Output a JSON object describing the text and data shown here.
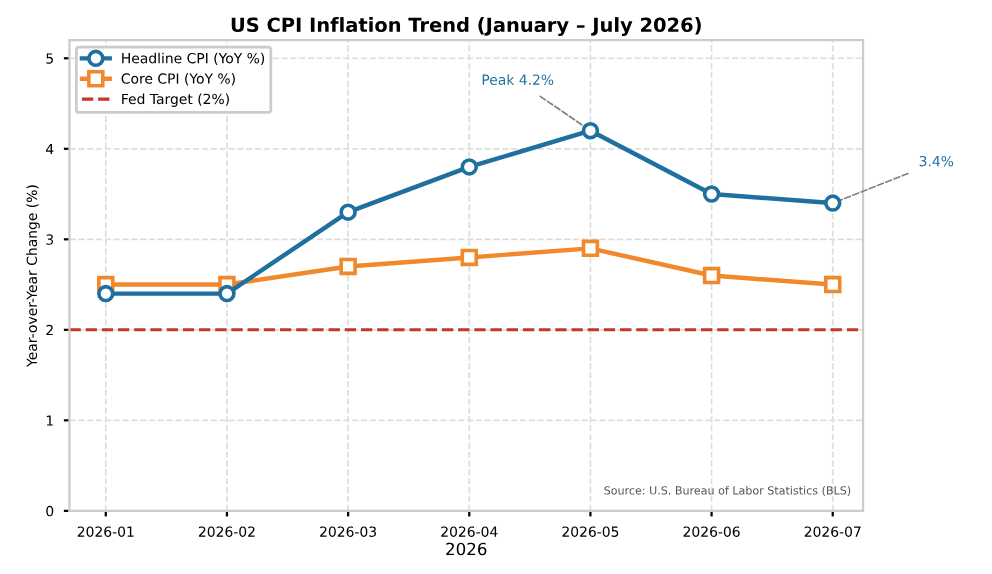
{
  "chart_data": {
    "type": "line",
    "title": "US CPI Inflation Trend (January – July 2026)",
    "xlabel": "2026",
    "ylabel": "Year-over-Year Change (%)",
    "categories": [
      "2026-01",
      "2026-02",
      "2026-03",
      "2026-04",
      "2026-05",
      "2026-06",
      "2026-07"
    ],
    "series": [
      {
        "name": "Headline CPI (YoY %)",
        "color": "#1f6f9f",
        "marker": "circle",
        "values": [
          2.4,
          2.4,
          3.3,
          3.8,
          4.2,
          3.5,
          3.4
        ]
      },
      {
        "name": "Core CPI (YoY %)",
        "color": "#f0892b",
        "marker": "square",
        "values": [
          2.5,
          2.5,
          2.7,
          2.8,
          2.9,
          2.6,
          2.5
        ]
      }
    ],
    "ref_lines": [
      {
        "axis": "y",
        "value": 2,
        "label": "Fed Target (2%)",
        "color": "#c0392b",
        "line_style": "dashed"
      }
    ],
    "annotations": [
      {
        "text": "Peak 4.2%",
        "x": "2026-05",
        "y": 4.2
      },
      {
        "text": "3.4%",
        "x": "2026-07",
        "y": 3.4
      },
      "Source: U.S. Bureau of Labor Statistics (BLS)"
    ],
    "ylim": [
      0,
      5.2
    ],
    "yticks": [
      0,
      1,
      2,
      3,
      4,
      5
    ],
    "grid": true,
    "legend": "top left",
    "line_style": "solid"
  }
}
